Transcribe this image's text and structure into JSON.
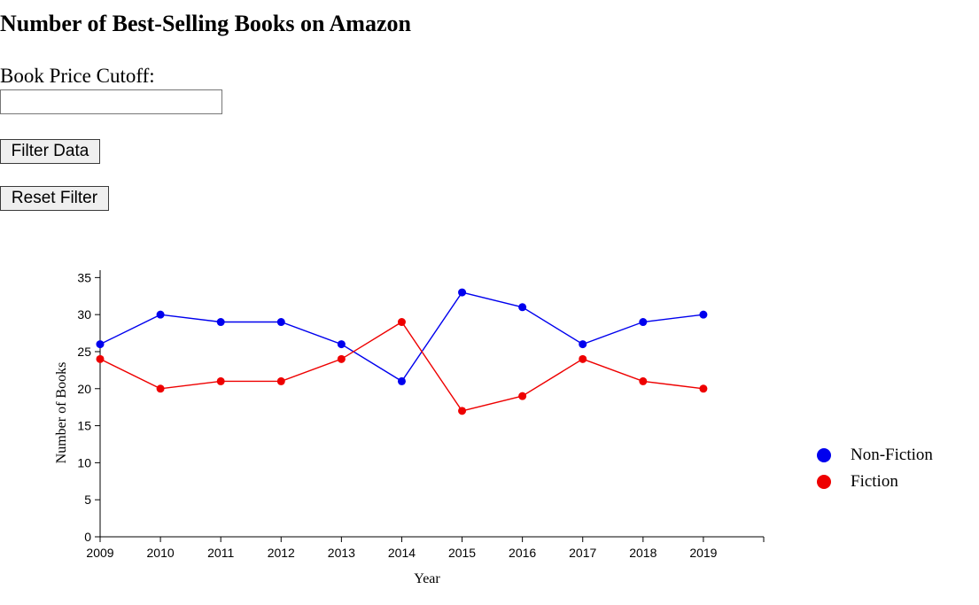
{
  "page": {
    "title": "Number of Best-Selling Books on Amazon",
    "cutoff_label": "Book Price Cutoff:",
    "cutoff_value": "",
    "filter_button": "Filter Data",
    "reset_button": "Reset Filter"
  },
  "chart_data": {
    "type": "line",
    "title": "",
    "xlabel": "Year",
    "ylabel": "Number of Books",
    "x": [
      2009,
      2010,
      2011,
      2012,
      2013,
      2014,
      2015,
      2016,
      2017,
      2018,
      2019
    ],
    "xlim": [
      2009,
      2020
    ],
    "ylim": [
      0,
      36
    ],
    "yticks": [
      0,
      5,
      10,
      15,
      20,
      25,
      30,
      35
    ],
    "grid": false,
    "legend_position": "right",
    "series": [
      {
        "name": "Non-Fiction",
        "color": "#0000ee",
        "values": [
          26,
          30,
          29,
          29,
          26,
          21,
          33,
          31,
          26,
          29,
          30
        ]
      },
      {
        "name": "Fiction",
        "color": "#ee0000",
        "values": [
          24,
          20,
          21,
          21,
          24,
          29,
          17,
          19,
          24,
          21,
          20
        ]
      }
    ]
  }
}
